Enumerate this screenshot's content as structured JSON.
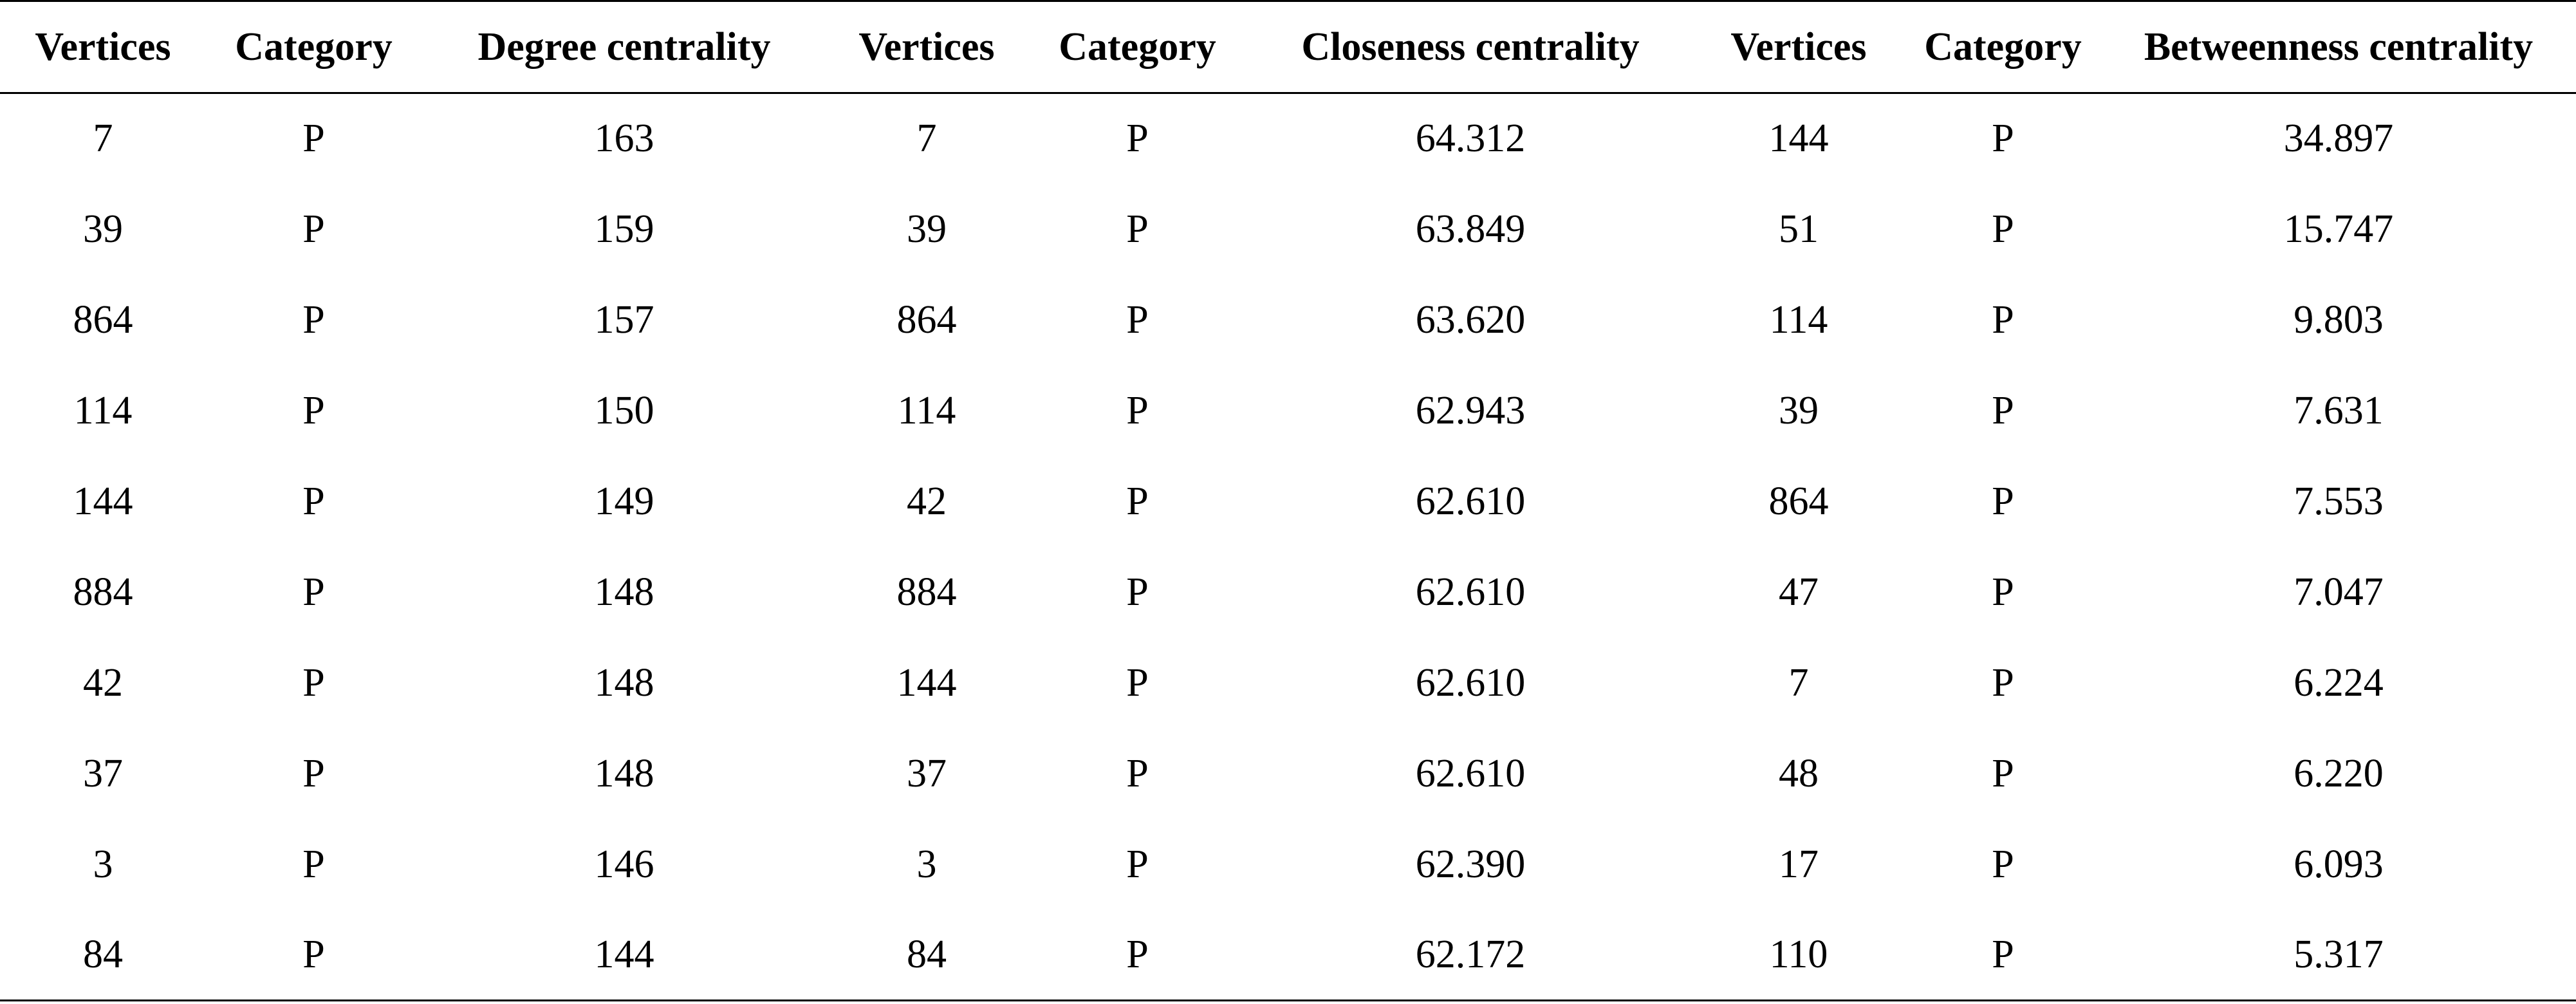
{
  "table": {
    "headers": [
      "Vertices",
      "Category",
      "Degree centrality",
      "Vertices",
      "Category",
      "Closeness centrality",
      "Vertices",
      "Category",
      "Betweenness centrality"
    ],
    "rows": [
      [
        "7",
        "P",
        "163",
        "7",
        "P",
        "64.312",
        "144",
        "P",
        "34.897"
      ],
      [
        "39",
        "P",
        "159",
        "39",
        "P",
        "63.849",
        "51",
        "P",
        "15.747"
      ],
      [
        "864",
        "P",
        "157",
        "864",
        "P",
        "63.620",
        "114",
        "P",
        "9.803"
      ],
      [
        "114",
        "P",
        "150",
        "114",
        "P",
        "62.943",
        "39",
        "P",
        "7.631"
      ],
      [
        "144",
        "P",
        "149",
        "42",
        "P",
        "62.610",
        "864",
        "P",
        "7.553"
      ],
      [
        "884",
        "P",
        "148",
        "884",
        "P",
        "62.610",
        "47",
        "P",
        "7.047"
      ],
      [
        "42",
        "P",
        "148",
        "144",
        "P",
        "62.610",
        "7",
        "P",
        "6.224"
      ],
      [
        "37",
        "P",
        "148",
        "37",
        "P",
        "62.610",
        "48",
        "P",
        "6.220"
      ],
      [
        "3",
        "P",
        "146",
        "3",
        "P",
        "62.390",
        "17",
        "P",
        "6.093"
      ],
      [
        "84",
        "P",
        "144",
        "84",
        "P",
        "62.172",
        "110",
        "P",
        "5.317"
      ]
    ]
  }
}
